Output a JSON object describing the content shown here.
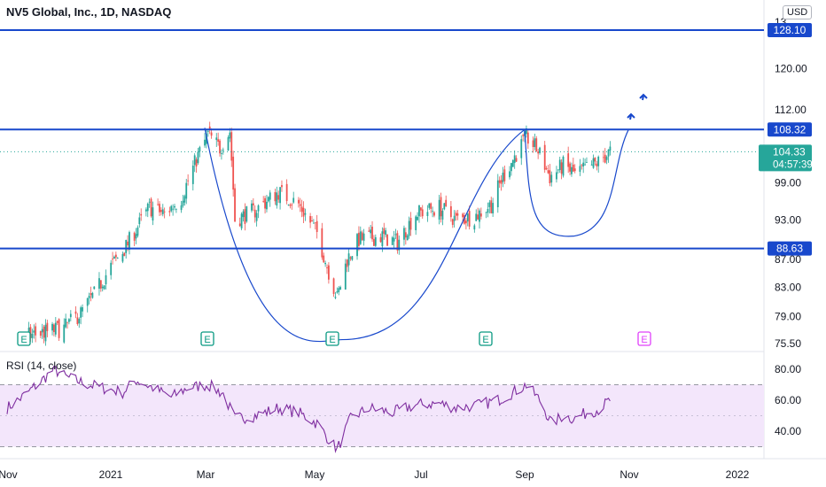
{
  "header": {
    "title": "NV5 Global, Inc., 1D, NASDAQ",
    "currency": "USD"
  },
  "price_axis": {
    "ticks": [
      "120.00",
      "112.00",
      "99.00",
      "93.00",
      "87.00",
      "83.00",
      "79.00",
      "75.50"
    ],
    "top_partial": "13"
  },
  "levels": [
    {
      "value": "128.10",
      "color": "#1848cc"
    },
    {
      "value": "108.32",
      "color": "#1848cc"
    },
    {
      "value": "88.63",
      "color": "#1848cc"
    }
  ],
  "last_price": {
    "value": "104.33",
    "countdown": "04:57:39",
    "color": "#26a69a"
  },
  "rsi": {
    "label": "RSI (14, close)",
    "ticks": [
      "80.00",
      "60.00",
      "40.00"
    ],
    "upper": 70,
    "lower": 30,
    "color": "#7e2d9f"
  },
  "time_axis": {
    "labels": [
      "Nov",
      "2021",
      "Mar",
      "May",
      "Jul",
      "Sep",
      "Nov",
      "2022"
    ]
  },
  "earnings": [
    {
      "label": "E",
      "state": "past"
    },
    {
      "label": "E",
      "state": "past"
    },
    {
      "label": "E",
      "state": "past"
    },
    {
      "label": "E",
      "state": "past"
    },
    {
      "label": "E",
      "state": "future"
    }
  ],
  "colors": {
    "up": "#26a69a",
    "down": "#ef5350",
    "drawing": "#1848cc",
    "rsi_fill": "#f3e6fb"
  },
  "chart_data": {
    "type": "candlestick",
    "title": "NV5 Global, Inc., 1D, NASDAQ",
    "x_range": [
      "2020-10-27",
      "2022-01-10"
    ],
    "y_scale": "log",
    "y_range": [
      74.5,
      132
    ],
    "ohlc_close_anchors": [
      [
        "2020-11-09",
        76.5
      ],
      [
        "2020-11-30",
        77.5
      ],
      [
        "2020-12-10",
        79.5
      ],
      [
        "2020-12-18",
        82
      ],
      [
        "2020-12-28",
        86
      ],
      [
        "2021-01-05",
        88.5
      ],
      [
        "2021-01-12",
        91.5
      ],
      [
        "2021-01-20",
        95
      ],
      [
        "2021-01-29",
        94
      ],
      [
        "2021-02-08",
        96.5
      ],
      [
        "2021-02-17",
        103
      ],
      [
        "2021-02-24",
        107.5
      ],
      [
        "2021-03-03",
        105
      ],
      [
        "2021-03-09",
        108
      ],
      [
        "2021-03-12",
        93
      ],
      [
        "2021-03-24",
        94.5
      ],
      [
        "2021-04-07",
        97.5
      ],
      [
        "2021-04-19",
        95.5
      ],
      [
        "2021-04-30",
        91
      ],
      [
        "2021-05-06",
        86
      ],
      [
        "2021-05-12",
        81.5
      ],
      [
        "2021-05-18",
        87
      ],
      [
        "2021-05-25",
        90
      ],
      [
        "2021-06-08",
        90.5
      ],
      [
        "2021-06-17",
        89.5
      ],
      [
        "2021-06-28",
        94
      ],
      [
        "2021-07-12",
        95
      ],
      [
        "2021-07-22",
        93
      ],
      [
        "2021-08-02",
        93.5
      ],
      [
        "2021-08-12",
        95.5
      ],
      [
        "2021-08-19",
        100
      ],
      [
        "2021-08-27",
        104
      ],
      [
        "2021-09-02",
        107
      ],
      [
        "2021-09-09",
        104.5
      ],
      [
        "2021-09-16",
        100
      ],
      [
        "2021-09-24",
        102
      ],
      [
        "2021-10-01",
        100.5
      ],
      [
        "2021-10-08",
        101.5
      ],
      [
        "2021-10-15",
        102.5
      ],
      [
        "2021-10-22",
        104.33
      ]
    ],
    "annotations": [
      {
        "type": "horizontal_line",
        "value": 128.1
      },
      {
        "type": "horizontal_line",
        "value": 108.32
      },
      {
        "type": "horizontal_line",
        "value": 88.63
      },
      {
        "type": "cup_curve",
        "from": "2021-02-22",
        "bottom": "2021-05-15",
        "to": "2021-09-01"
      },
      {
        "type": "handle_curve",
        "from": "2021-09-01",
        "bottom": "2021-09-25",
        "to": "2021-11-02"
      },
      {
        "type": "arrow",
        "direction": "up",
        "count": 2
      }
    ],
    "rsi_series": {
      "name": "RSI (14, close)",
      "range": [
        25,
        85
      ],
      "anchors": [
        [
          "2020-10-27",
          55
        ],
        [
          "2020-11-05",
          62
        ],
        [
          "2020-11-16",
          72
        ],
        [
          "2020-11-24",
          80
        ],
        [
          "2020-12-01",
          75
        ],
        [
          "2020-12-15",
          70
        ],
        [
          "2021-01-04",
          65
        ],
        [
          "2021-01-12",
          73
        ],
        [
          "2021-01-22",
          68
        ],
        [
          "2021-02-02",
          62
        ],
        [
          "2021-02-12",
          68
        ],
        [
          "2021-02-24",
          70
        ],
        [
          "2021-03-05",
          64
        ],
        [
          "2021-03-12",
          48
        ],
        [
          "2021-03-24",
          50
        ],
        [
          "2021-04-07",
          55
        ],
        [
          "2021-04-19",
          52
        ],
        [
          "2021-04-30",
          45
        ],
        [
          "2021-05-07",
          35
        ],
        [
          "2021-05-12",
          28
        ],
        [
          "2021-05-20",
          48
        ],
        [
          "2021-05-31",
          55
        ],
        [
          "2021-06-14",
          52
        ],
        [
          "2021-06-28",
          57
        ],
        [
          "2021-07-12",
          58
        ],
        [
          "2021-07-22",
          55
        ],
        [
          "2021-08-05",
          57
        ],
        [
          "2021-08-16",
          60
        ],
        [
          "2021-08-25",
          65
        ],
        [
          "2021-09-02",
          70
        ],
        [
          "2021-09-10",
          60
        ],
        [
          "2021-09-17",
          45
        ],
        [
          "2021-09-24",
          50
        ],
        [
          "2021-10-01",
          48
        ],
        [
          "2021-10-08",
          52
        ],
        [
          "2021-10-15",
          54
        ],
        [
          "2021-10-22",
          60
        ]
      ]
    }
  }
}
